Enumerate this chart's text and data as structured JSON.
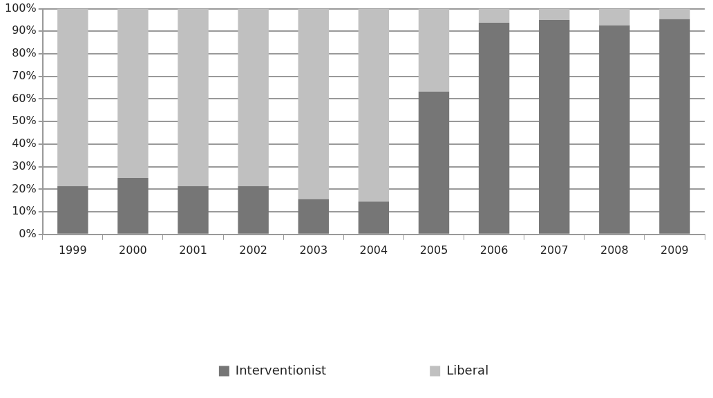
{
  "chart_data": {
    "type": "bar",
    "stacked": true,
    "categories": [
      "1999",
      "2000",
      "2001",
      "2002",
      "2003",
      "2004",
      "2005",
      "2006",
      "2007",
      "2008",
      "2009"
    ],
    "series": [
      {
        "name": "Interventionist",
        "color": "#767676",
        "values": [
          21.3,
          25,
          21.3,
          21.3,
          15.6,
          14.5,
          63.3,
          93.8,
          95,
          92.6,
          95.4
        ]
      },
      {
        "name": "Liberal",
        "color": "#c0c0c0",
        "values": [
          78.7,
          75,
          78.7,
          78.7,
          84.4,
          85.5,
          36.7,
          6.2,
          5,
          7.4,
          4.6
        ]
      }
    ],
    "ylim": [
      0,
      100
    ],
    "yticks": [
      {
        "value": 0,
        "label": "0%"
      },
      {
        "value": 10,
        "label": "10%"
      },
      {
        "value": 20,
        "label": "20%"
      },
      {
        "value": 30,
        "label": "30%"
      },
      {
        "value": 40,
        "label": "40%"
      },
      {
        "value": 50,
        "label": "50%"
      },
      {
        "value": 60,
        "label": "60%"
      },
      {
        "value": 70,
        "label": "70%"
      },
      {
        "value": 80,
        "label": "80%"
      },
      {
        "value": 90,
        "label": "90%"
      },
      {
        "value": 100,
        "label": "100%"
      }
    ],
    "grid": "y",
    "legend": "bottom"
  }
}
